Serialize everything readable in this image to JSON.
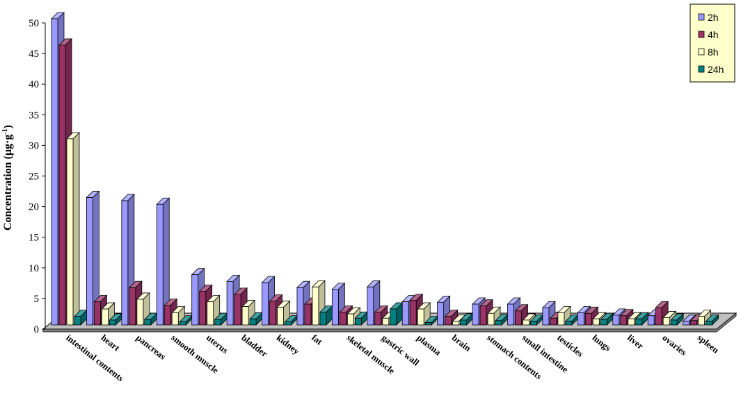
{
  "chart_data": {
    "type": "bar",
    "style": "3d-clustered-column",
    "ylabel_main": "Concentration (μg·g",
    "ylabel_sup": "-1",
    "ylabel_end": ")",
    "ylim": [
      0,
      50
    ],
    "yticks": [
      0,
      5,
      10,
      15,
      20,
      25,
      30,
      35,
      40,
      45,
      50
    ],
    "categories": [
      "intestinal contents",
      "heart",
      "pancreas",
      "smooth muscle",
      "uterus",
      "bladder",
      "kidney",
      "fat",
      "skeletal muscle",
      "gastric wall",
      "plasma",
      "brain",
      "stomach contents",
      "small intestine",
      "testicles",
      "lungs",
      "liver",
      "ovaries",
      "spleen"
    ],
    "series": [
      {
        "name": "2h",
        "color": "#9999FF",
        "values": [
          50,
          20.8,
          20.3,
          19.7,
          8.2,
          7.1,
          6.9,
          6.1,
          5.8,
          6.2,
          3.8,
          3.7,
          3.4,
          3.4,
          2.8,
          2.0,
          1.6,
          1.5,
          0.6
        ]
      },
      {
        "name": "4h",
        "color": "#993366",
        "values": [
          45.7,
          3.8,
          6.1,
          3.2,
          5.5,
          5.0,
          3.9,
          3.4,
          2.1,
          2.1,
          4.0,
          1.4,
          3.1,
          2.3,
          1.1,
          1.9,
          1.5,
          2.8,
          0.7
        ]
      },
      {
        "name": "8h",
        "color": "#FFFFCC",
        "values": [
          30.4,
          2.6,
          4.2,
          2.0,
          3.8,
          3.0,
          2.9,
          6.2,
          1.8,
          1.1,
          2.6,
          0.6,
          1.9,
          0.8,
          2.0,
          1.0,
          1.0,
          1.2,
          1.4
        ]
      },
      {
        "name": "24h",
        "color": "#008080",
        "values": [
          1.4,
          0.8,
          0.9,
          0.5,
          0.9,
          1.0,
          0.5,
          2.1,
          1.1,
          2.6,
          0.4,
          0.8,
          0.7,
          0.6,
          0.6,
          0.9,
          1.0,
          0.8,
          0.6
        ]
      }
    ],
    "legend_position": "top-right",
    "grid": false
  }
}
